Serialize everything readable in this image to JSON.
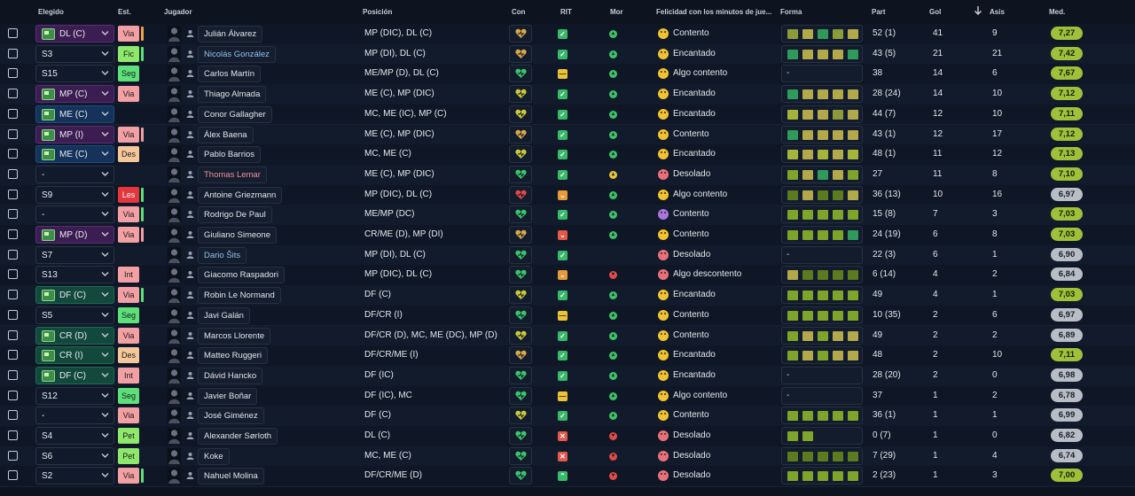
{
  "colors": {
    "form_levels": {
      "0": "#8d9a3a",
      "1": "#b3a94a",
      "2": "#a6b53a",
      "3": "#7fa42a",
      "4": "#2f9a5a",
      "5": "#5c7a1e"
    },
    "heart": {
      "g": "#3cc46a",
      "y": "#c9c93a",
      "o": "#d8a84a",
      "r": "#e04848"
    },
    "face": {
      "happy": "#f1c232",
      "sad": "#e8707a",
      "purple": "#a975e0"
    }
  },
  "headers": {
    "elegido": "Elegido",
    "est": "Est.",
    "jugador": "Jugador",
    "posicion": "Posición",
    "con": "Con",
    "rit": "RIT",
    "mor": "Mor",
    "felicidad": "Felicidad con los minutos de jue...",
    "forma": "Forma",
    "part": "Part",
    "gol": "Gol",
    "asis": "Asis",
    "med": "Med."
  },
  "rows": [
    {
      "sel": "DL (C)",
      "selColor": "pur",
      "selPitch": true,
      "est": "Via",
      "estColor": "red",
      "estBar": "#f0a24a",
      "name": "Julián Álvarez",
      "nameStyle": "",
      "pos": "MP (DIC), DL (C)",
      "con": "o",
      "rit": "check",
      "mor": "g",
      "face": "happy",
      "fel": "Contento",
      "form": [
        0,
        1,
        4,
        0,
        1
      ],
      "part": "52 (1)",
      "gol": "41",
      "asis": "9",
      "med": "7,27",
      "medHi": true
    },
    {
      "sel": "S3",
      "selColor": "",
      "selPitch": false,
      "est": "Fic",
      "estColor": "lgrn",
      "estBar": "#5de07a",
      "name": "Nicolás González",
      "nameStyle": "link",
      "pos": "MP (DI), DL (C)",
      "con": "o",
      "rit": "check",
      "mor": "g",
      "face": "happy",
      "fel": "Encantado",
      "form": [
        4,
        1,
        1,
        1,
        4
      ],
      "part": "43 (5)",
      "gol": "21",
      "asis": "21",
      "med": "7,42",
      "medHi": true
    },
    {
      "sel": "S15",
      "selColor": "",
      "selPitch": false,
      "est": "Seg",
      "estColor": "grn",
      "estBar": "",
      "name": "Carlos Martín",
      "nameStyle": "",
      "pos": "ME/MP (D), DL (C)",
      "con": "g",
      "rit": "dash",
      "mor": "g",
      "face": "happy",
      "fel": "Algo contento",
      "form": [],
      "part": "38",
      "gol": "14",
      "asis": "6",
      "med": "7,67",
      "medHi": true
    },
    {
      "sel": "MP (C)",
      "selColor": "pur",
      "selPitch": true,
      "est": "Via",
      "estColor": "red",
      "estBar": "",
      "name": "Thiago Almada",
      "nameStyle": "",
      "pos": "ME (C), MP (DIC)",
      "con": "y",
      "rit": "check",
      "mor": "g",
      "face": "happy",
      "fel": "Encantado",
      "form": [
        4,
        1,
        1,
        1,
        1
      ],
      "part": "28 (24)",
      "gol": "14",
      "asis": "10",
      "med": "7,12",
      "medHi": true
    },
    {
      "sel": "ME (C)",
      "selColor": "blu",
      "selPitch": true,
      "est": "",
      "estColor": "",
      "estBar": "",
      "name": "Conor Gallagher",
      "nameStyle": "",
      "pos": "MC, ME (IC), MP (C)",
      "con": "y",
      "rit": "check",
      "mor": "g",
      "face": "happy",
      "fel": "Encantado",
      "form": [
        2,
        1,
        1,
        0,
        1
      ],
      "part": "44 (7)",
      "gol": "12",
      "asis": "10",
      "med": "7,11",
      "medHi": true
    },
    {
      "sel": "MP (I)",
      "selColor": "pur",
      "selPitch": true,
      "est": "Via",
      "estColor": "red",
      "estBar": "#f3a0a4",
      "name": "Álex Baena",
      "nameStyle": "",
      "pos": "ME (C), MP (DIC)",
      "con": "o",
      "rit": "check",
      "mor": "g",
      "face": "happy",
      "fel": "Contento",
      "form": [
        4,
        1,
        1,
        1,
        1
      ],
      "part": "43 (1)",
      "gol": "12",
      "asis": "17",
      "med": "7,12",
      "medHi": true
    },
    {
      "sel": "ME (C)",
      "selColor": "blu",
      "selPitch": true,
      "est": "Des",
      "estColor": "org",
      "estBar": "",
      "name": "Pablo Barrios",
      "nameStyle": "",
      "pos": "MC, ME (C)",
      "con": "y",
      "rit": "check",
      "mor": "g",
      "face": "happy",
      "fel": "Encantado",
      "form": [
        2,
        1,
        2,
        1,
        2
      ],
      "part": "48 (1)",
      "gol": "11",
      "asis": "12",
      "med": "7,13",
      "medHi": true
    },
    {
      "sel": "-",
      "selColor": "",
      "selPitch": false,
      "est": "",
      "estColor": "",
      "estBar": "",
      "name": "Thomas Lemar",
      "nameStyle": "hl",
      "pos": "ME (C), MP (DIC)",
      "con": "g",
      "rit": "check",
      "mor": "y",
      "face": "sad",
      "fel": "Desolado",
      "form": [
        3,
        1,
        4,
        1,
        3
      ],
      "part": "27",
      "gol": "11",
      "asis": "8",
      "med": "7,10",
      "medHi": true
    },
    {
      "sel": "S9",
      "selColor": "",
      "selPitch": false,
      "est": "Les",
      "estColor": "dred",
      "estBar": "#5de07a",
      "name": "Antoine Griezmann",
      "nameStyle": "",
      "pos": "MP (DIC), DL (C)",
      "con": "r",
      "rit": "down",
      "mor": "g",
      "face": "happy",
      "fel": "Algo contento",
      "form": [
        5,
        1,
        5,
        5,
        1
      ],
      "part": "36 (13)",
      "gol": "10",
      "asis": "16",
      "med": "6,97",
      "medHi": false
    },
    {
      "sel": "-",
      "selColor": "",
      "selPitch": false,
      "est": "Via",
      "estColor": "red",
      "estBar": "#5de07a",
      "name": "Rodrigo De Paul",
      "nameStyle": "",
      "pos": "ME/MP (DC)",
      "con": "g",
      "rit": "check",
      "mor": "g",
      "face": "purple",
      "fel": "Contento",
      "form": [
        3,
        3,
        3,
        3,
        3
      ],
      "part": "15 (8)",
      "gol": "7",
      "asis": "3",
      "med": "7,03",
      "medHi": true
    },
    {
      "sel": "MP (D)",
      "selColor": "pur",
      "selPitch": true,
      "est": "Via",
      "estColor": "red",
      "estBar": "#f3a0a4",
      "name": "Giuliano Simeone",
      "nameStyle": "",
      "pos": "CR/ME (D), MP (DI)",
      "con": "o",
      "rit": "downr",
      "mor": "g",
      "face": "happy",
      "fel": "Contento",
      "form": [
        3,
        3,
        3,
        3,
        4
      ],
      "part": "24 (19)",
      "gol": "6",
      "asis": "8",
      "med": "7,03",
      "medHi": true
    },
    {
      "sel": "S7",
      "selColor": "",
      "selPitch": false,
      "est": "",
      "estColor": "",
      "estBar": "",
      "name": "Dario Šits",
      "nameStyle": "link",
      "pos": "MP (DI), DL (C)",
      "con": "g",
      "rit": "check",
      "mor": "",
      "face": "sad",
      "fel": "Desolado",
      "form": [],
      "part": "22 (3)",
      "gol": "6",
      "asis": "1",
      "med": "6,90",
      "medHi": false
    },
    {
      "sel": "S13",
      "selColor": "",
      "selPitch": false,
      "est": "Int",
      "estColor": "red",
      "estBar": "",
      "name": "Giacomo Raspadori",
      "nameStyle": "",
      "pos": "MP (DIC), DL (C)",
      "con": "g",
      "rit": "down",
      "mor": "r",
      "face": "sad",
      "fel": "Algo descontento",
      "form": [
        1,
        5,
        5,
        5,
        5
      ],
      "part": "6 (14)",
      "gol": "4",
      "asis": "2",
      "med": "6,84",
      "medHi": false
    },
    {
      "sel": "DF (C)",
      "selColor": "grn",
      "selPitch": true,
      "est": "Via",
      "estColor": "red",
      "estBar": "#5de07a",
      "name": "Robin Le Normand",
      "nameStyle": "",
      "pos": "DF (C)",
      "con": "y",
      "rit": "check",
      "mor": "g",
      "face": "happy",
      "fel": "Encantado",
      "form": [
        3,
        3,
        3,
        3,
        3
      ],
      "part": "49",
      "gol": "4",
      "asis": "1",
      "med": "7,03",
      "medHi": true
    },
    {
      "sel": "S5",
      "selColor": "",
      "selPitch": false,
      "est": "Seg",
      "estColor": "grn",
      "estBar": "",
      "name": "Javi Galán",
      "nameStyle": "",
      "pos": "DF/CR (I)",
      "con": "g",
      "rit": "dash",
      "mor": "g",
      "face": "happy",
      "fel": "Contento",
      "form": [
        3,
        3,
        3,
        3,
        3
      ],
      "part": "10 (35)",
      "gol": "2",
      "asis": "6",
      "med": "6,97",
      "medHi": false
    },
    {
      "sel": "CR (D)",
      "selColor": "grn",
      "selPitch": true,
      "est": "Via",
      "estColor": "red",
      "estBar": "",
      "name": "Marcos Llorente",
      "nameStyle": "",
      "pos": "DF/CR (D), MC, ME (DC), MP (D)",
      "con": "y",
      "rit": "check",
      "mor": "g",
      "face": "happy",
      "fel": "Contento",
      "form": [
        3,
        1,
        3,
        1,
        1
      ],
      "part": "49",
      "gol": "2",
      "asis": "2",
      "med": "6,89",
      "medHi": false
    },
    {
      "sel": "CR (I)",
      "selColor": "grn",
      "selPitch": true,
      "est": "Des",
      "estColor": "org",
      "estBar": "",
      "name": "Matteo Ruggeri",
      "nameStyle": "",
      "pos": "DF/CR/ME (I)",
      "con": "o",
      "rit": "check",
      "mor": "g",
      "face": "happy",
      "fel": "Encantado",
      "form": [
        3,
        1,
        3,
        1,
        1
      ],
      "part": "48",
      "gol": "2",
      "asis": "10",
      "med": "7,11",
      "medHi": true
    },
    {
      "sel": "DF (C)",
      "selColor": "grn",
      "selPitch": true,
      "est": "Int",
      "estColor": "red",
      "estBar": "",
      "name": "Dávid Hancko",
      "nameStyle": "",
      "pos": "DF (IC)",
      "con": "g",
      "rit": "check",
      "mor": "g",
      "face": "happy",
      "fel": "Encantado",
      "form": [],
      "part": "28 (20)",
      "gol": "2",
      "asis": "0",
      "med": "6,98",
      "medHi": false
    },
    {
      "sel": "S12",
      "selColor": "",
      "selPitch": false,
      "est": "Seg",
      "estColor": "grn",
      "estBar": "",
      "name": "Javier Boñar",
      "nameStyle": "",
      "pos": "DF (IC), MC",
      "con": "g",
      "rit": "dash",
      "mor": "g",
      "face": "happy",
      "fel": "Algo contento",
      "form": [],
      "part": "37",
      "gol": "1",
      "asis": "2",
      "med": "6,78",
      "medHi": false
    },
    {
      "sel": "-",
      "selColor": "",
      "selPitch": false,
      "est": "Via",
      "estColor": "red",
      "estBar": "",
      "name": "José Giménez",
      "nameStyle": "",
      "pos": "DF (C)",
      "con": "y",
      "rit": "check",
      "mor": "g",
      "face": "happy",
      "fel": "Contento",
      "form": [
        3,
        3,
        3,
        3,
        3
      ],
      "part": "36 (1)",
      "gol": "1",
      "asis": "1",
      "med": "6,99",
      "medHi": false
    },
    {
      "sel": "S4",
      "selColor": "",
      "selPitch": false,
      "est": "Pet",
      "estColor": "lgrn",
      "estBar": "",
      "name": "Alexander Sørloth",
      "nameStyle": "",
      "pos": "DL (C)",
      "con": "g",
      "rit": "x",
      "mor": "r",
      "face": "sad",
      "fel": "Desolado",
      "form": [
        3,
        3
      ],
      "part": "0 (7)",
      "gol": "1",
      "asis": "0",
      "med": "6,82",
      "medHi": false
    },
    {
      "sel": "S6",
      "selColor": "",
      "selPitch": false,
      "est": "Pet",
      "estColor": "lgrn",
      "estBar": "",
      "name": "Koke",
      "nameStyle": "",
      "pos": "MC, ME (C)",
      "con": "g",
      "rit": "x",
      "mor": "r",
      "face": "sad",
      "fel": "Desolado",
      "form": [
        5,
        5,
        5,
        5,
        5
      ],
      "part": "7 (29)",
      "gol": "1",
      "asis": "4",
      "med": "6,74",
      "medHi": false
    },
    {
      "sel": "S2",
      "selColor": "",
      "selPitch": false,
      "est": "Via",
      "estColor": "red",
      "estBar": "#5de07a",
      "name": "Nahuel Molina",
      "nameStyle": "",
      "pos": "DF/CR/ME (D)",
      "con": "g",
      "rit": "up",
      "mor": "r",
      "face": "sad",
      "fel": "Desolado",
      "form": [
        3,
        3,
        3,
        3,
        3
      ],
      "part": "2 (23)",
      "gol": "1",
      "asis": "3",
      "med": "7,00",
      "medHi": true
    }
  ]
}
